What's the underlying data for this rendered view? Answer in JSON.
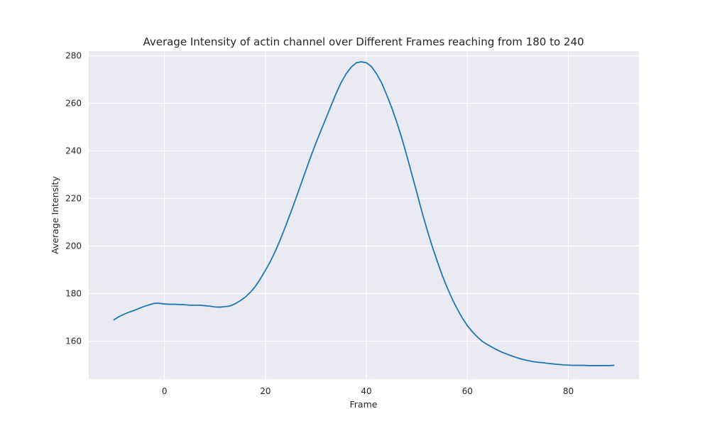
{
  "chart_data": {
    "type": "line",
    "title": "Average Intensity of actin channel over Different Frames reaching from 180 to 240",
    "xlabel": "Frame",
    "ylabel": "Average Intensity",
    "xlim": [
      -15,
      94
    ],
    "ylim": [
      144,
      282
    ],
    "xticks": [
      0,
      20,
      40,
      60,
      80
    ],
    "yticks": [
      160,
      180,
      200,
      220,
      240,
      260,
      280
    ],
    "grid": true,
    "colors": {
      "series": "#1f77b4",
      "plot_bg": "#eaeaf2",
      "grid": "#ffffff"
    },
    "series": [
      {
        "x": [
          -10,
          -9,
          -8,
          -7,
          -6,
          -5,
          -4,
          -3,
          -2,
          -1,
          0,
          1,
          2,
          3,
          4,
          5,
          6,
          7,
          8,
          9,
          10,
          11,
          12,
          13,
          14,
          15,
          16,
          17,
          18,
          19,
          20,
          21,
          22,
          23,
          24,
          25,
          26,
          27,
          28,
          29,
          30,
          31,
          32,
          33,
          34,
          35,
          36,
          37,
          38,
          39,
          40,
          41,
          42,
          43,
          44,
          45,
          46,
          47,
          48,
          49,
          50,
          51,
          52,
          53,
          54,
          55,
          56,
          57,
          58,
          59,
          60,
          61,
          62,
          63,
          64,
          65,
          66,
          67,
          68,
          69,
          70,
          71,
          72,
          73,
          74,
          75,
          76,
          77,
          78,
          79,
          80,
          81,
          82,
          83,
          84,
          85,
          86,
          87,
          88,
          89
        ],
        "y": [
          169,
          170.3,
          171.3,
          172.2,
          172.9,
          173.8,
          174.6,
          175.3,
          175.9,
          175.9,
          175.6,
          175.5,
          175.5,
          175.4,
          175.3,
          175.1,
          175.1,
          175.1,
          174.9,
          174.7,
          174.4,
          174.3,
          174.5,
          174.8,
          175.7,
          177,
          178.5,
          180.5,
          183,
          186.2,
          189.8,
          193.6,
          198,
          203,
          208.4,
          214,
          219.8,
          225.8,
          231.8,
          237.7,
          243.3,
          248.6,
          253.8,
          259,
          264.2,
          268.8,
          272.5,
          275.3,
          277.1,
          277.5,
          277.1,
          275.5,
          272.5,
          268.7,
          263.7,
          258.3,
          252.2,
          245.5,
          238,
          230.2,
          222.4,
          214.4,
          207,
          200.1,
          193.8,
          187.8,
          182.5,
          177.7,
          173.5,
          169.7,
          166.5,
          163.9,
          161.7,
          159.8,
          158.5,
          157.3,
          156.2,
          155.2,
          154.4,
          153.6,
          152.9,
          152.3,
          151.8,
          151.4,
          151.1,
          150.9,
          150.6,
          150.4,
          150.2,
          150,
          149.9,
          149.8,
          149.8,
          149.8,
          149.7,
          149.7,
          149.7,
          149.7,
          149.7,
          149.8
        ]
      }
    ]
  }
}
